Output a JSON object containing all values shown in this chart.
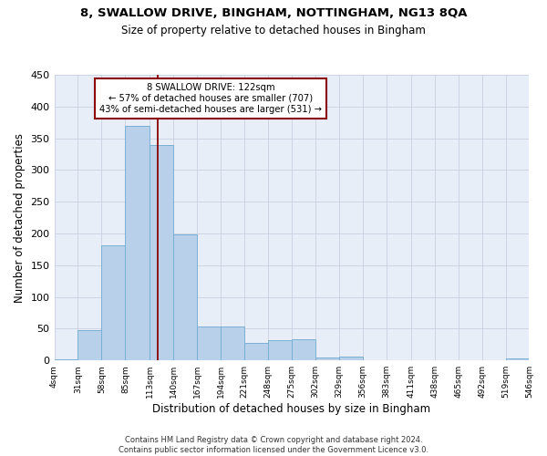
{
  "title1": "8, SWALLOW DRIVE, BINGHAM, NOTTINGHAM, NG13 8QA",
  "title2": "Size of property relative to detached houses in Bingham",
  "xlabel": "Distribution of detached houses by size in Bingham",
  "ylabel": "Number of detached properties",
  "bar_values": [
    2,
    47,
    181,
    370,
    340,
    198,
    54,
    54,
    28,
    32,
    34,
    5,
    6,
    1,
    1,
    1,
    0,
    0,
    0,
    3
  ],
  "bin_edges": [
    4,
    31,
    58,
    85,
    113,
    140,
    167,
    194,
    221,
    248,
    275,
    302,
    329,
    356,
    383,
    411,
    438,
    465,
    492,
    519,
    546
  ],
  "bar_color": "#b8d0ea",
  "bar_edge_color": "#7aafd4",
  "vline_x": 122,
  "vline_color": "#8b0000",
  "annotation_text_line1": "8 SWALLOW DRIVE: 122sqm",
  "annotation_text_line2": "← 57% of detached houses are smaller (707)",
  "annotation_text_line3": "43% of semi-detached houses are larger (531) →",
  "footnote_line1": "Contains HM Land Registry data © Crown copyright and database right 2024.",
  "footnote_line2": "Contains public sector information licensed under the Government Licence v3.0.",
  "ylim": [
    0,
    450
  ],
  "bg_color": "#e8eef8",
  "grid_color": "#c8d0e0"
}
